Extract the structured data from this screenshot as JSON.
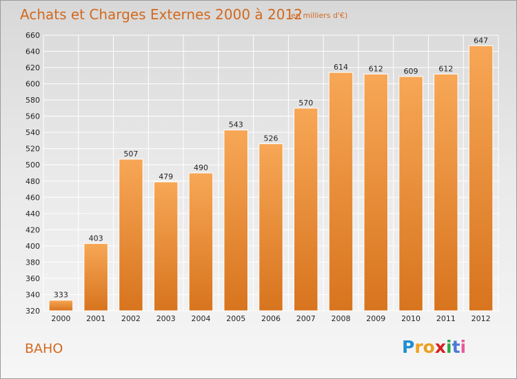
{
  "title": "Achats et Charges Externes 2000 à 2012",
  "unit": "(en milliers d'€)",
  "commune": "BAHO",
  "logo": {
    "text": "Proxiti",
    "letter_colors": [
      "#1f8fd1",
      "#f0a020",
      "#e8a020",
      "#d62020",
      "#2aa84a",
      "#4a7ad8",
      "#e85a9a"
    ]
  },
  "colors": {
    "bar_light": "#f7a756",
    "bar_dark": "#d8741e",
    "accent": "#d2691e"
  },
  "chart_data": {
    "type": "bar",
    "categories": [
      "2000",
      "2001",
      "2002",
      "2003",
      "2004",
      "2005",
      "2006",
      "2007",
      "2008",
      "2009",
      "2010",
      "2011",
      "2012"
    ],
    "values": [
      333,
      403,
      507,
      479,
      490,
      543,
      526,
      570,
      614,
      612,
      609,
      612,
      647
    ],
    "title": "Achats et Charges Externes 2000 à 2012",
    "xlabel": "",
    "ylabel": "",
    "ylim": [
      320,
      660
    ],
    "yticks": [
      320,
      340,
      360,
      380,
      400,
      420,
      440,
      460,
      480,
      500,
      520,
      540,
      560,
      580,
      600,
      620,
      640,
      660
    ],
    "grid": true,
    "legend": "none"
  }
}
